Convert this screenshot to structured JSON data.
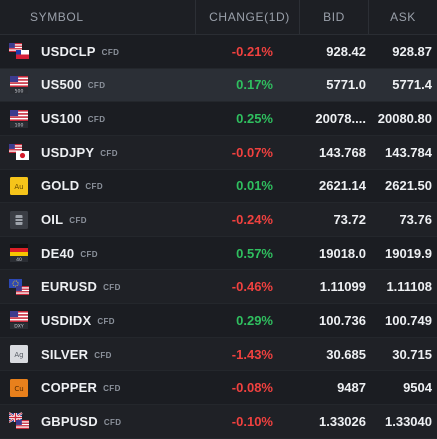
{
  "header": {
    "symbol": "SYMBOL",
    "change": "CHANGE(1D)",
    "bid": "BID",
    "ask": "ASK"
  },
  "rows": [
    {
      "symbol": "USDCLP",
      "badge": "CFD",
      "change": "-0.21%",
      "direction": "negative",
      "bid": "928.42",
      "ask": "928.87",
      "icon": "us-cl-flag-icon",
      "selected": false
    },
    {
      "symbol": "US500",
      "badge": "CFD",
      "change": "0.17%",
      "direction": "positive",
      "bid": "5771.0",
      "ask": "5771.4",
      "icon": "us-flag-500-icon",
      "icon_caption": "500",
      "selected": true
    },
    {
      "symbol": "US100",
      "badge": "CFD",
      "change": "0.25%",
      "direction": "positive",
      "bid": "20078....",
      "ask": "20080.80",
      "icon": "us-flag-100-icon",
      "icon_caption": "100",
      "selected": false
    },
    {
      "symbol": "USDJPY",
      "badge": "CFD",
      "change": "-0.07%",
      "direction": "negative",
      "bid": "143.768",
      "ask": "143.784",
      "icon": "us-jp-flag-icon",
      "selected": false
    },
    {
      "symbol": "GOLD",
      "badge": "CFD",
      "change": "0.01%",
      "direction": "positive",
      "bid": "2621.14",
      "ask": "2621.50",
      "icon": "gold-icon",
      "icon_caption": "Au",
      "selected": false
    },
    {
      "symbol": "OIL",
      "badge": "CFD",
      "change": "-0.24%",
      "direction": "negative",
      "bid": "73.72",
      "ask": "73.76",
      "icon": "oil-barrel-icon",
      "selected": false
    },
    {
      "symbol": "DE40",
      "badge": "CFD",
      "change": "0.57%",
      "direction": "positive",
      "bid": "19018.0",
      "ask": "19019.9",
      "icon": "de-flag-icon",
      "icon_caption": "40",
      "selected": false
    },
    {
      "symbol": "EURUSD",
      "badge": "CFD",
      "change": "-0.46%",
      "direction": "negative",
      "bid": "1.11099",
      "ask": "1.11108",
      "icon": "eu-us-flag-icon",
      "selected": false
    },
    {
      "symbol": "USDIDX",
      "badge": "CFD",
      "change": "0.29%",
      "direction": "positive",
      "bid": "100.736",
      "ask": "100.749",
      "icon": "us-flag-dxy-icon",
      "icon_caption": "DXY",
      "selected": false
    },
    {
      "symbol": "SILVER",
      "badge": "CFD",
      "change": "-1.43%",
      "direction": "negative",
      "bid": "30.685",
      "ask": "30.715",
      "icon": "silver-icon",
      "icon_caption": "Ag",
      "selected": false
    },
    {
      "symbol": "COPPER",
      "badge": "CFD",
      "change": "-0.08%",
      "direction": "negative",
      "bid": "9487",
      "ask": "9504",
      "icon": "copper-icon",
      "icon_caption": "Cu",
      "selected": false
    },
    {
      "symbol": "GBPUSD",
      "badge": "CFD",
      "change": "-0.10%",
      "direction": "negative",
      "bid": "1.33026",
      "ask": "1.33040",
      "icon": "gb-us-flag-icon",
      "selected": false
    }
  ],
  "colors": {
    "negative": "#f0413f",
    "positive": "#2fbf5f",
    "background": "#1b1d22",
    "selected_row": "#2b2f36",
    "header_text": "#9aa0aa"
  }
}
